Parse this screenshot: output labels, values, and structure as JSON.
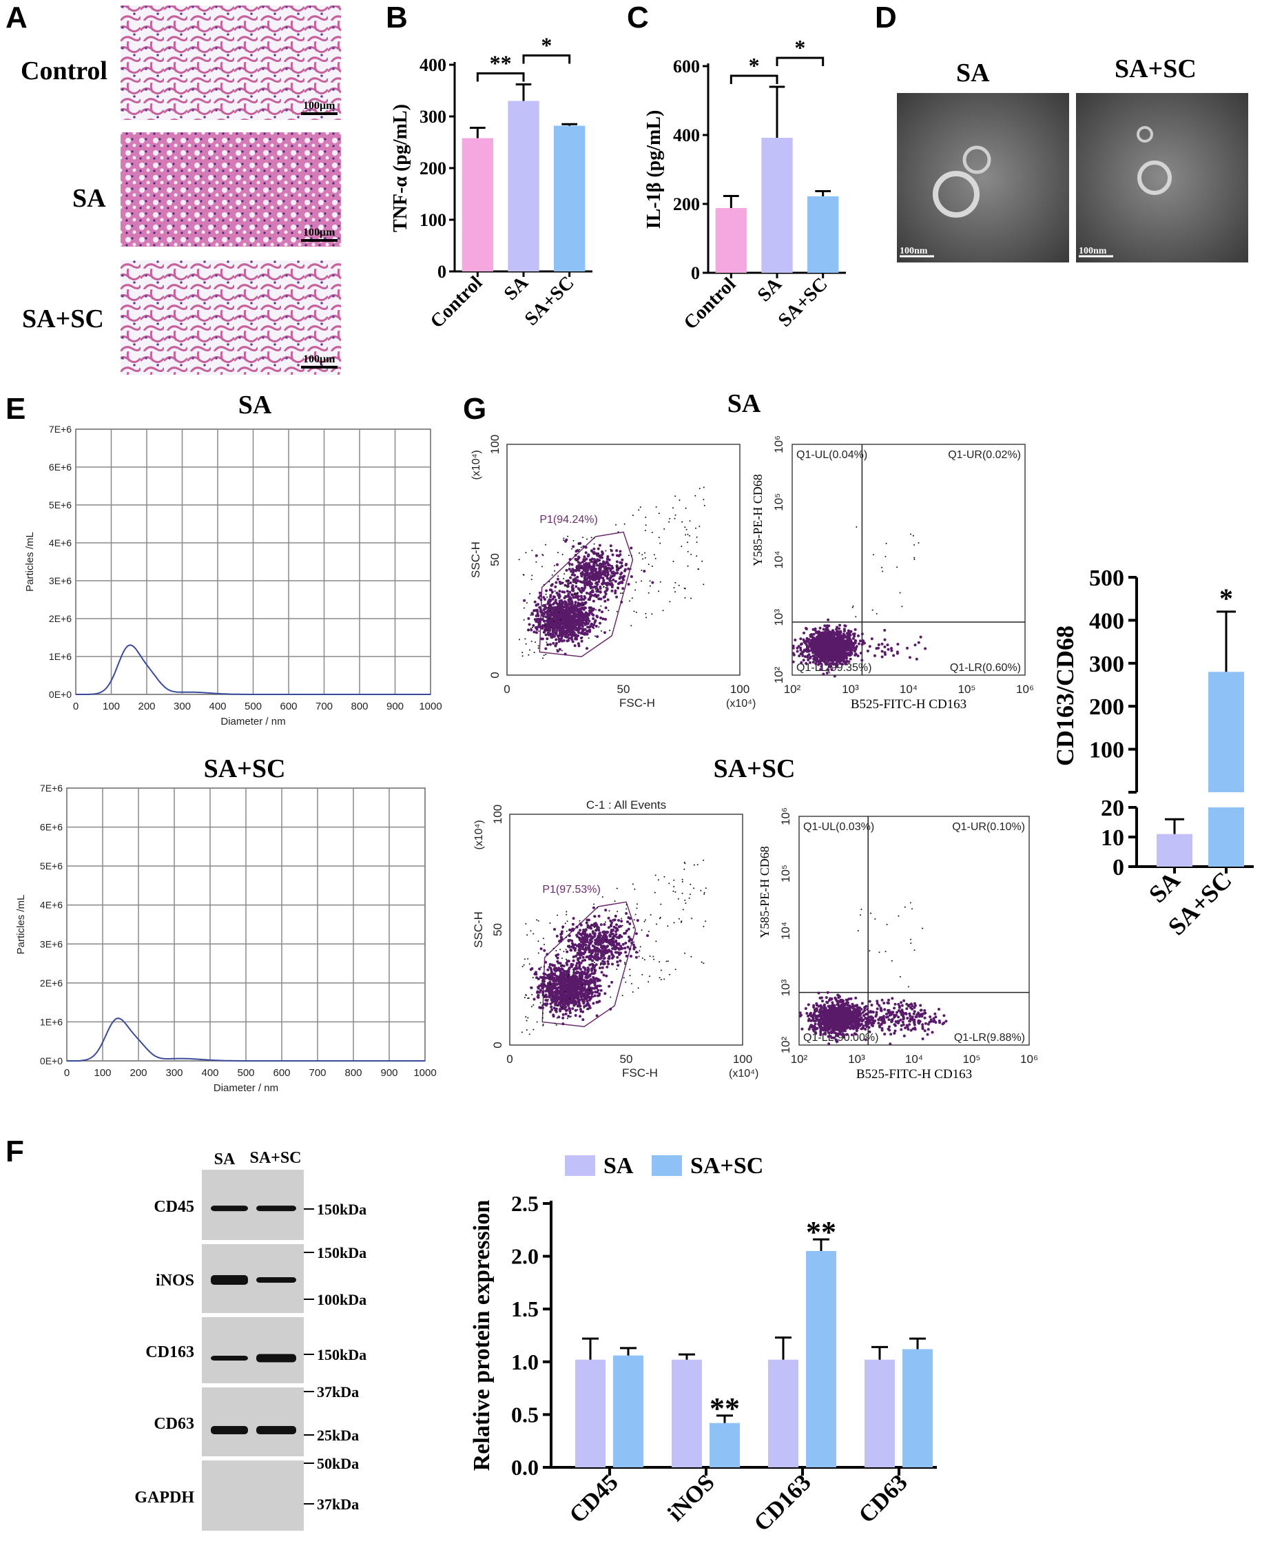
{
  "panels": {
    "A": "A",
    "B": "B",
    "C": "C",
    "D": "D",
    "E": "E",
    "F": "F",
    "G": "G"
  },
  "panelA": {
    "rows": [
      "Control",
      "SA",
      "SA+SC"
    ],
    "scale": "100μm"
  },
  "panelD": {
    "labels": [
      "SA",
      "SA+SC"
    ],
    "scale": "100nm"
  },
  "panelE": {
    "titles": [
      "SA",
      "SA+SC"
    ],
    "ylabel": "Particles /mL",
    "xlabel": "Diameter / nm",
    "yticks": [
      "0E+0",
      "1E+6",
      "2E+6",
      "3E+6",
      "4E+6",
      "5E+6",
      "6E+6",
      "7E+6"
    ],
    "xticks": [
      "0",
      "100",
      "200",
      "300",
      "400",
      "500",
      "600",
      "700",
      "800",
      "900",
      "1000"
    ]
  },
  "panelG": {
    "titles": [
      "SA",
      "SA+SC"
    ],
    "scatter": {
      "xlabel": "FSC-H",
      "ylabel": "SSC-H",
      "unit": "(x10⁴)",
      "ticks": [
        "0",
        "50",
        "100"
      ],
      "gate": [
        "P1(94.24%)",
        "P1(97.53%)"
      ],
      "header": "C-1 : All Events"
    },
    "quad": {
      "xlabel": "B525-FITC-H CD163",
      "ylabel": "Y585-PE-H CD68",
      "ticks": [
        "10²",
        "10³",
        "10⁴",
        "10⁵",
        "10⁶"
      ],
      "sa": {
        "ul": "Q1-UL(0.04%)",
        "ur": "Q1-UR(0.02%)",
        "ll": "Q1-LL(99.35%)",
        "lr": "Q1-LR(0.60%)"
      },
      "sasc": {
        "ul": "Q1-UL(0.03%)",
        "ur": "Q1-UR(0.10%)",
        "ll": "Q1-LL(90.00%)",
        "lr": "Q1-LR(9.88%)"
      }
    }
  },
  "panelF": {
    "blot_headers": [
      "SA",
      "SA+SC"
    ],
    "proteins": [
      "CD45",
      "iNOS",
      "CD163",
      "CD63",
      "GAPDH"
    ],
    "markers": [
      "150kDa",
      "150kDa",
      "100kDa",
      "150kDa",
      "37kDa",
      "25kDa",
      "50kDa",
      "37kDa"
    ]
  },
  "chart_data": [
    {
      "type": "bar",
      "panel": "B",
      "categories": [
        "Control",
        "SA",
        "SA+SC"
      ],
      "values": [
        258,
        330,
        282
      ],
      "errors": [
        20,
        32,
        3
      ],
      "ylabel": "TNF-α (pg/mL)",
      "ylim": [
        0,
        400
      ],
      "yticks": [
        "0",
        "100",
        "200",
        "300",
        "400"
      ],
      "significance": [
        "**",
        "*"
      ],
      "colors": [
        "#f5a8e0",
        "#c2c0f8",
        "#8ec2f6"
      ]
    },
    {
      "type": "bar",
      "panel": "C",
      "categories": [
        "Control",
        "SA",
        "SA+SC"
      ],
      "values": [
        188,
        392,
        222
      ],
      "errors": [
        35,
        148,
        15
      ],
      "ylabel": "IL-1β (pg/mL)",
      "ylim": [
        0,
        600
      ],
      "yticks": [
        "0",
        "200",
        "400",
        "600"
      ],
      "significance": [
        "*",
        "*"
      ],
      "colors": [
        "#f5a8e0",
        "#c2c0f8",
        "#8ec2f6"
      ]
    },
    {
      "type": "bar",
      "panel": "G-right",
      "categories": [
        "SA",
        "SA+SC"
      ],
      "values": [
        11,
        280
      ],
      "errors": [
        5,
        140
      ],
      "ylabel": "CD163/CD68",
      "yticks_upper": [
        "100",
        "200",
        "300",
        "400",
        "500"
      ],
      "yticks_lower": [
        "0",
        "10",
        "20"
      ],
      "significance": [
        "*"
      ],
      "colors": [
        "#c2c0f8",
        "#8ec2f6"
      ]
    },
    {
      "type": "bar",
      "panel": "F-right",
      "categories": [
        "CD45",
        "iNOS",
        "CD163",
        "CD63"
      ],
      "series": [
        {
          "name": "SA",
          "values": [
            1.02,
            1.02,
            1.02,
            1.02
          ],
          "errors": [
            0.2,
            0.05,
            0.21,
            0.12
          ],
          "color": "#c2c0f8"
        },
        {
          "name": "SA+SC",
          "values": [
            1.06,
            0.42,
            2.05,
            1.12
          ],
          "errors": [
            0.07,
            0.07,
            0.11,
            0.1
          ],
          "color": "#8ec2f6"
        }
      ],
      "significance": [
        "",
        "**",
        "**",
        ""
      ],
      "ylabel": "Relative protein expression",
      "ylim": [
        0,
        2.5
      ],
      "yticks": [
        "0.0",
        "0.5",
        "1.0",
        "1.5",
        "2.0",
        "2.5"
      ],
      "legend": "top"
    }
  ]
}
